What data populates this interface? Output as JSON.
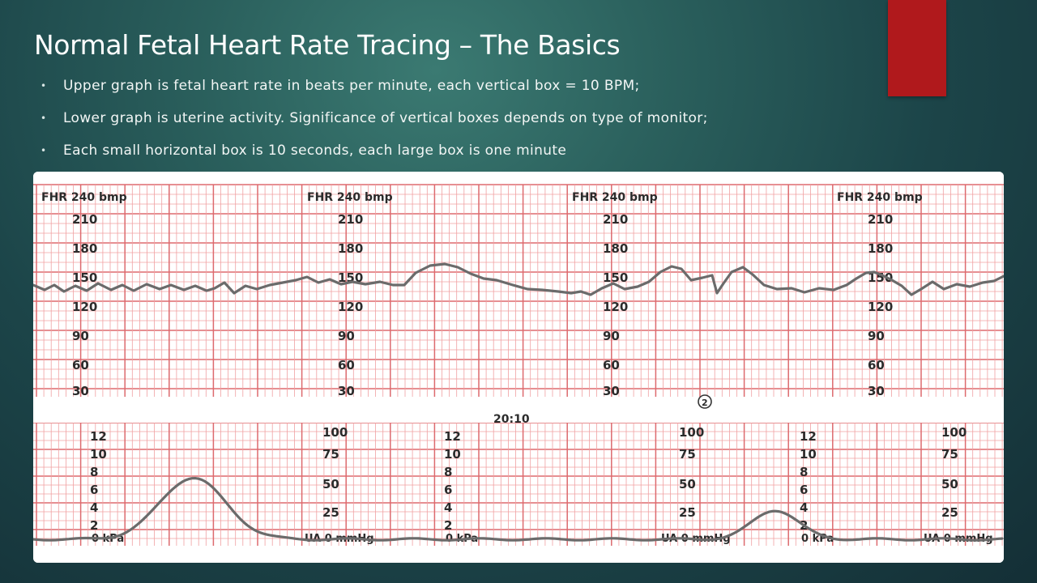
{
  "slide": {
    "title": "Normal Fetal Heart Rate Tracing – The Basics",
    "bullets": [
      "Upper graph is fetal heart rate in beats per minute, each vertical box = 10 BPM;",
      "Lower graph is uterine activity.  Significance of vertical boxes depends on type of monitor;",
      "Each small horizontal box is 10 seconds, each large box is one minute"
    ]
  },
  "colors": {
    "accent": "#b0191c",
    "grid_minor": "#f0a0a2",
    "grid_major": "#dd6a6e",
    "trace": "#6b6b6b"
  },
  "tracing": {
    "fhr_header": "FHR 240 bmp",
    "fhr_scale": [
      "210",
      "180",
      "150",
      "120",
      "90",
      "60",
      "30"
    ],
    "time_mark": "20:10",
    "event_mark": "2",
    "kpa_scale": [
      "12",
      "10",
      "8",
      "6",
      "4",
      "2"
    ],
    "kpa_zero": "0 kPa",
    "mmhg_scale": [
      "100",
      "75",
      "50",
      "25"
    ],
    "mmhg_zero": "UA  0  mmHg"
  }
}
